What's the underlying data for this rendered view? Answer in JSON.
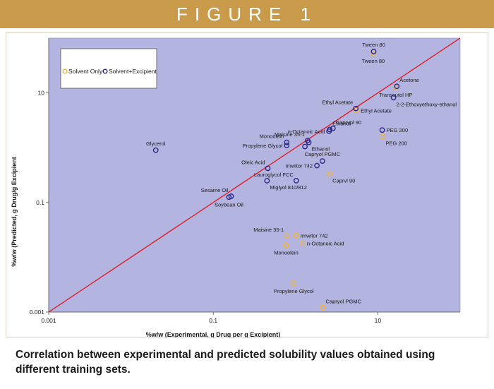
{
  "banner": {
    "title": "FIGURE 1"
  },
  "caption": "Correlation between experimental and predicted solubility values obtained using different training sets.",
  "colors": {
    "plot_bg": "#b3b4df",
    "solvent_only": "#f2b53c",
    "solvent_excipient": "#2b2a8a",
    "diagonal": "#e1141c",
    "banner": "#c99a4a"
  },
  "chart_data": {
    "type": "scatter",
    "xlabel": "%w/w (Experimental, g Drug per g Excipient)",
    "ylabel": "%w/w (Predicted, g Drug/g Excipient",
    "xscale": "log",
    "yscale": "log",
    "xlim": [
      0.001,
      100
    ],
    "ylim": [
      0.001,
      100
    ],
    "xticks": [
      {
        "v": 0.001,
        "label": "0.001"
      },
      {
        "v": 0.1,
        "label": "0.1"
      },
      {
        "v": 10,
        "label": "10"
      }
    ],
    "yticks": [
      {
        "v": 0.001,
        "label": "0.001"
      },
      {
        "v": 0.1,
        "label": "0.1"
      },
      {
        "v": 10,
        "label": "10"
      }
    ],
    "legend": {
      "placement": "top-left",
      "entries": [
        "Solvent Only",
        "Solvent+Excipient"
      ]
    },
    "series": [
      {
        "name": "Solvent Only",
        "points": [
          {
            "x": 8.8,
            "y": 52,
            "label": "Tween 80",
            "anchor": "below"
          },
          {
            "x": 16.5,
            "y": 12.5,
            "label": "Transcutol HP",
            "anchor": "below"
          },
          {
            "x": 5.5,
            "y": 4.8,
            "label": "Ethyl Acetate",
            "anchor": "right"
          },
          {
            "x": 11.5,
            "y": 1.6,
            "label": "PEG 200",
            "anchor": "below-right"
          },
          {
            "x": 2.6,
            "y": 0.33,
            "label": "Caprvl 90",
            "anchor": "below-right"
          },
          {
            "x": 0.78,
            "y": 0.0245,
            "label": "Maisine 35-1",
            "anchor": "above-left"
          },
          {
            "x": 1.02,
            "y": 0.025,
            "label": "Imwitor 742",
            "anchor": "right"
          },
          {
            "x": 0.77,
            "y": 0.0165,
            "label": "Monoolein",
            "anchor": "below"
          },
          {
            "x": 1.22,
            "y": 0.018,
            "label": "n-Octanoic Acid",
            "anchor": "right"
          },
          {
            "x": 0.95,
            "y": 0.0033,
            "label": "Propylene Glycol",
            "anchor": "below"
          },
          {
            "x": 2.15,
            "y": 0.00122,
            "label": "Capryol PGMC",
            "anchor": "above-right"
          }
        ]
      },
      {
        "name": "Solvent+Excipient",
        "points": [
          {
            "x": 8.9,
            "y": 57,
            "label": "Tween 80",
            "anchor": "above"
          },
          {
            "x": 17,
            "y": 13.2,
            "label": "Acetone",
            "anchor": "above-right"
          },
          {
            "x": 15.5,
            "y": 8.2,
            "label": "2-2-Ethoxyethoxy-ethanol",
            "anchor": "below-right"
          },
          {
            "x": 5.4,
            "y": 5.2,
            "label": "Ethyl Acetate",
            "anchor": "above-left"
          },
          {
            "x": 11.3,
            "y": 2.1,
            "label": "PEG 200",
            "anchor": "right"
          },
          {
            "x": 2.85,
            "y": 2.25,
            "label": "Caprypl 90",
            "anchor": "above-right"
          },
          {
            "x": 2.6,
            "y": 2.15,
            "label": "Ethanol",
            "anchor": "above-right"
          },
          {
            "x": 2.55,
            "y": 2.0,
            "label": "n-Octanoic Acid",
            "anchor": "left"
          },
          {
            "x": 1.4,
            "y": 1.35,
            "label": "Maisine 35-1",
            "anchor": "above-left"
          },
          {
            "x": 0.78,
            "y": 1.25,
            "label": "Monoolein",
            "anchor": "above-left"
          },
          {
            "x": 0.78,
            "y": 1.1,
            "label": "Propylene Glycol",
            "anchor": "left"
          },
          {
            "x": 1.45,
            "y": 1.25,
            "label": "Ethanol",
            "anchor": "below-right"
          },
          {
            "x": 1.3,
            "y": 1.05,
            "label": "",
            "anchor": "none"
          },
          {
            "x": 0.02,
            "y": 0.9,
            "label": "Glycerol",
            "anchor": "above"
          },
          {
            "x": 2.12,
            "y": 0.57,
            "label": "Capryol PGMC",
            "anchor": "above"
          },
          {
            "x": 1.82,
            "y": 0.47,
            "label": "Imwitor 742",
            "anchor": "left"
          },
          {
            "x": 0.46,
            "y": 0.42,
            "label": "Oleic Acid",
            "anchor": "above-left"
          },
          {
            "x": 1.02,
            "y": 0.25,
            "label": "Lauroglycol FCC",
            "anchor": "above-left"
          },
          {
            "x": 0.45,
            "y": 0.25,
            "label": "Miglyol 810/812",
            "anchor": "below-right"
          },
          {
            "x": 0.165,
            "y": 0.13,
            "label": "Sesame Oil",
            "anchor": "above-left"
          },
          {
            "x": 0.155,
            "y": 0.125,
            "label": "Soybean Oil",
            "anchor": "below"
          }
        ]
      }
    ]
  }
}
